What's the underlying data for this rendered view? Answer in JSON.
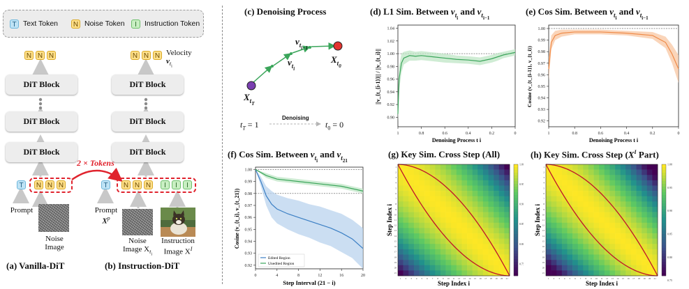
{
  "legend": {
    "text_token": "Text Token",
    "noise_token": "Noise Token",
    "instruction_token": "Instruction Token",
    "text_letter": "T",
    "noise_letter": "N",
    "instruction_letter": "I"
  },
  "left": {
    "dit_block": "DiT Block",
    "velocity": "Velocity",
    "velocity_symbol": "v",
    "velocity_sub": "t",
    "velocity_subsub": "i",
    "tokens_label": "2 × Tokens",
    "prompt": "Prompt",
    "prompt_xp": "X",
    "prompt_xp_sup": "p",
    "noise_image": "Noise",
    "noise_image2": "Image",
    "noise_image_xt": "Noise",
    "noise_image_xt2": "Image X",
    "noise_image_xt_sub": "t",
    "noise_image_xt_subsub": "i",
    "instruction_image": "Instruction",
    "instruction_image2": "Image X",
    "instruction_image_sup": "I",
    "caption_a": "(a) Vanilla-DiT",
    "caption_b": "(b) Instruction-DiT"
  },
  "panel_c": {
    "title": "(c) Denoising Process",
    "x_tt": "X",
    "x_t0": "X",
    "v_ti": "v",
    "v_ti1": "v",
    "denoising": "Denoising",
    "t_start": "t",
    "t_start_sub": "T",
    "t_start_val": "= 1",
    "t_end": "t",
    "t_end_sub": "0",
    "t_end_val": "= 0"
  },
  "panel_d": {
    "title": "(d) L1 Sim. Between",
    "title_v1": "v",
    "title_and": "and",
    "xlabel": "Denoising Process t",
    "xlabel_sub": "i",
    "ylabel": "||v_{t_{i-1}}|| / ||v_{t_i}||"
  },
  "panel_e": {
    "title": "(e) Cos Sim. Between",
    "title_and": "and",
    "xlabel": "Denoising Process t",
    "xlabel_sub": "i",
    "ylabel": "Cosine (v_{t_{i-1}}, v_{t_i})"
  },
  "panel_f": {
    "title": "(f) Cos Sim. Between",
    "title_and": "and",
    "xlabel": "Step Interval",
    "xlabel2": "(21 − i)",
    "ylabel": "Cosine (v_{t_i}, v_{t_21})",
    "legend_edited": "Edited Region",
    "legend_unedited": "Unedited Region"
  },
  "panel_g": {
    "title": "(g) Key Sim. Cross Step (All)",
    "xlabel": "Step Index i",
    "ylabel": "Step Index i"
  },
  "panel_h": {
    "title": "(h) Key Sim. Cross Step (",
    "title_x": "X",
    "title_sup": "I",
    "title_end": "Part)",
    "xlabel": "Step Index i",
    "ylabel": "Step Index i"
  },
  "colors": {
    "green": "#3aa55a",
    "green_fill": "#bfe6c6",
    "orange": "#ef8a47",
    "orange_fill": "#f8c7a3",
    "blue": "#3b7fc4",
    "blue_fill": "#b9d3ee",
    "red": "#c0142a",
    "purple": "#7a3fb0"
  },
  "chart_data": [
    {
      "id": "d",
      "type": "line",
      "title": "(d) L1 Sim. Between v_{t_i} and v_{t_{i-1}}",
      "xlabel": "Denoising Process t_i",
      "ylabel": "||v_{t_{i-1}}|| / ||v_{t_i}||",
      "x_ticks": [
        "1",
        "0.8",
        "0.6",
        "0.4",
        "0.2",
        "0"
      ],
      "y_ticks": [
        "0.90",
        "0.92",
        "0.94",
        "0.96",
        "0.98",
        "1.00",
        "1.02",
        "1.04"
      ],
      "xlim": [
        1,
        0
      ],
      "ylim": [
        0.885,
        1.045
      ],
      "reference_line": 1.0,
      "x": [
        1,
        0.99,
        0.97,
        0.95,
        0.9,
        0.85,
        0.8,
        0.7,
        0.6,
        0.5,
        0.4,
        0.3,
        0.2,
        0.15,
        0.1,
        0.05,
        0
      ],
      "y": [
        0.905,
        0.96,
        0.985,
        0.993,
        0.997,
        0.996,
        0.997,
        0.995,
        0.993,
        0.991,
        0.99,
        0.988,
        0.992,
        0.995,
        0.998,
        1.0,
        1.002
      ],
      "band": [
        0.012,
        0.02,
        0.015,
        0.01,
        0.008,
        0.007,
        0.007,
        0.007,
        0.007,
        0.006,
        0.006,
        0.006,
        0.006,
        0.006,
        0.005,
        0.005,
        0.005
      ]
    },
    {
      "id": "e",
      "type": "line",
      "title": "(e) Cos Sim. Between v_{t_i} and v_{t_{i-1}}",
      "xlabel": "Denoising Process t_i",
      "ylabel": "Cosine (v_{t_{i-1}}, v_{t_i})",
      "x_ticks": [
        "1",
        "0.8",
        "0.6",
        "0.4",
        "0.2",
        "0"
      ],
      "y_ticks": [
        "0.92",
        "0.93",
        "0.94",
        "0.95",
        "0.96",
        "0.97",
        "0.98",
        "0.99",
        "1.00"
      ],
      "xlim": [
        1,
        0
      ],
      "ylim": [
        0.915,
        1.003
      ],
      "reference_line": 1.0,
      "x": [
        1,
        0.98,
        0.95,
        0.9,
        0.8,
        0.6,
        0.4,
        0.2,
        0.1,
        0.05,
        0
      ],
      "y": [
        0.965,
        0.988,
        0.994,
        0.996,
        0.997,
        0.997,
        0.996,
        0.994,
        0.988,
        0.978,
        0.965
      ],
      "band": [
        0.01,
        0.006,
        0.004,
        0.003,
        0.002,
        0.002,
        0.002,
        0.003,
        0.005,
        0.008,
        0.012
      ]
    },
    {
      "id": "f",
      "type": "line",
      "title": "(f) Cos Sim. Between v_{t_i} and v_{t_21}",
      "xlabel": "Step Interval (21 − i)",
      "ylabel": "Cosine (v_{t_i}, v_{t_21})",
      "x_ticks": [
        "0",
        "4",
        "8",
        "12",
        "16",
        "20"
      ],
      "y_ticks": [
        "0.92",
        "0.93",
        "0.94",
        "0.95",
        "0.96",
        "0.97",
        "0.98",
        "0.99",
        "1.00"
      ],
      "xlim": [
        0,
        20
      ],
      "ylim": [
        0.917,
        1.002
      ],
      "reference_lines": [
        1.0,
        0.98
      ],
      "series": [
        {
          "name": "Edited Region",
          "x": [
            0,
            1,
            2,
            3,
            4,
            6,
            8,
            10,
            12,
            14,
            16,
            18,
            20
          ],
          "y": [
            1.0,
            0.99,
            0.978,
            0.971,
            0.967,
            0.963,
            0.96,
            0.957,
            0.954,
            0.951,
            0.947,
            0.942,
            0.934
          ],
          "band": [
            0.0,
            0.004,
            0.008,
            0.011,
            0.012,
            0.013,
            0.014,
            0.014,
            0.015,
            0.015,
            0.016,
            0.016,
            0.017
          ]
        },
        {
          "name": "Unedited Region",
          "x": [
            0,
            2,
            4,
            8,
            12,
            16,
            20
          ],
          "y": [
            1.0,
            0.995,
            0.992,
            0.99,
            0.988,
            0.986,
            0.982
          ],
          "band": [
            0.0,
            0.002,
            0.002,
            0.002,
            0.002,
            0.002,
            0.002
          ]
        }
      ]
    },
    {
      "id": "g",
      "type": "heatmap",
      "title": "(g) Key Sim. Cross Step (All)",
      "xlabel": "Step Index i",
      "ylabel": "Step Index i",
      "size": 21,
      "colorbar_ticks": [
        "0.75",
        "0.80",
        "0.85",
        "0.90",
        "0.95",
        "1.00"
      ],
      "value_range": [
        0.72,
        1.0
      ]
    },
    {
      "id": "h",
      "type": "heatmap",
      "title": "(h) Key Sim. Cross Step (X^I Part)",
      "xlabel": "Step Index i",
      "ylabel": "Step Index i",
      "size": 21,
      "colorbar_ticks": [
        "0.75",
        "0.80",
        "0.85",
        "0.90",
        "0.95",
        "1.00"
      ],
      "value_range": [
        0.76,
        1.0
      ]
    }
  ]
}
